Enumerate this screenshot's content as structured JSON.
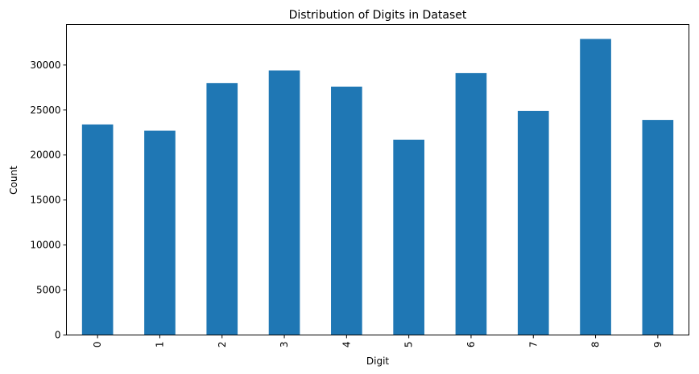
{
  "chart_data": {
    "type": "bar",
    "title": "Distribution of Digits in Dataset",
    "xlabel": "Digit",
    "ylabel": "Count",
    "categories": [
      "0",
      "1",
      "2",
      "3",
      "4",
      "5",
      "6",
      "7",
      "8",
      "9"
    ],
    "values": [
      23400,
      22700,
      28000,
      29400,
      27600,
      21700,
      29100,
      24900,
      32900,
      23900
    ],
    "ylim": [
      0,
      34500
    ],
    "yticks": [
      0,
      5000,
      10000,
      15000,
      20000,
      25000,
      30000
    ],
    "bar_color": "#1f77b4",
    "grid": false,
    "legend": false
  }
}
